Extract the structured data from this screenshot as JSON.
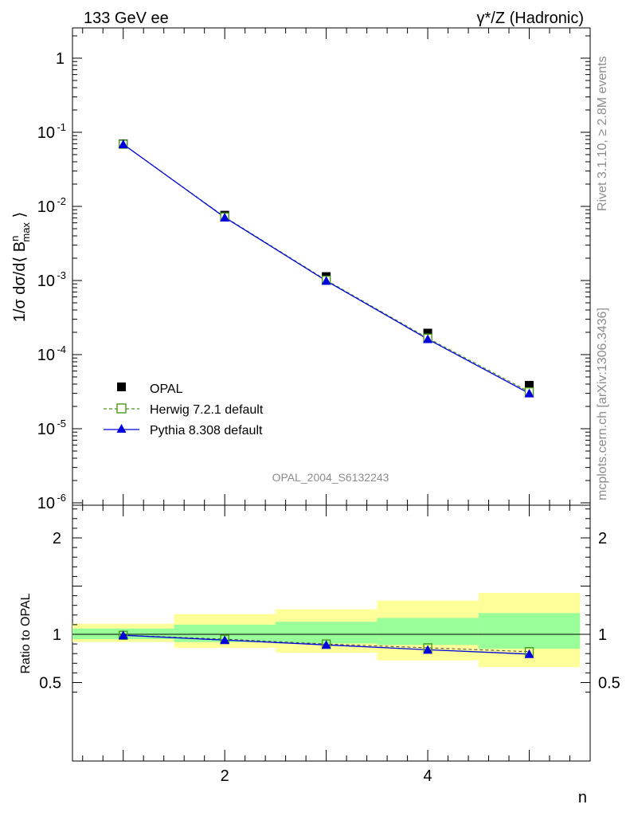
{
  "header": {
    "left": "133 GeV ee",
    "right": "γ*/Z (Hadronic)"
  },
  "side_labels": {
    "rivet": "Rivet 3.1.10, ≥ 2.8M events",
    "mcplots": "mcplots.cern.ch [arXiv:1306.3436]"
  },
  "watermark": "OPAL_2004_S6132243",
  "colors": {
    "opal": "#000000",
    "herwig": "#4a9a1a",
    "pythia": "#0000dd",
    "band_inner": "#99ff99",
    "band_outer": "#ffff99"
  },
  "chart_data": [
    {
      "type": "line",
      "panel": "main",
      "scale": "log",
      "ylabel": "1/σ dσ/d⟨ B_max^n ⟩",
      "yticks": [
        "1",
        "10^-1",
        "10^-2",
        "10^-3",
        "10^-4",
        "10^-5",
        "10^-6"
      ],
      "ylim": [
        1e-06,
        2.5
      ],
      "xlim": [
        0.5,
        5.6
      ],
      "x": [
        1,
        2,
        3,
        4,
        5
      ],
      "series": [
        {
          "name": "OPAL",
          "marker": "square-filled",
          "values": [
            0.07,
            0.0076,
            0.00113,
            0.000195,
            3.85e-05
          ]
        },
        {
          "name": "Herwig 7.2.1 default",
          "marker": "square-open",
          "style": "dashed",
          "values": [
            0.069,
            0.0072,
            0.00101,
            0.000167,
            3.15e-05
          ]
        },
        {
          "name": "Pythia 8.308 default",
          "marker": "triangle",
          "style": "solid",
          "values": [
            0.069,
            0.0071,
            0.00099,
            0.000162,
            3e-05
          ]
        }
      ],
      "legend": "bottom-left"
    },
    {
      "type": "line",
      "panel": "ratio",
      "ylabel": "Ratio to OPAL",
      "xlabel": "n",
      "xticks": [
        "2",
        "4"
      ],
      "yticks": [
        "0.5",
        "1",
        "2"
      ],
      "ylim": [
        0.4,
        2.5
      ],
      "xlim": [
        0.5,
        5.6
      ],
      "bins": [
        [
          0.5,
          1.5
        ],
        [
          1.5,
          2.5
        ],
        [
          2.5,
          3.5
        ],
        [
          3.5,
          4.5
        ],
        [
          4.5,
          5.5
        ]
      ],
      "band_inner": [
        [
          0.95,
          1.06
        ],
        [
          0.92,
          1.1
        ],
        [
          0.905,
          1.13
        ],
        [
          0.89,
          1.17
        ],
        [
          0.85,
          1.22
        ]
      ],
      "band_outer": [
        [
          0.92,
          1.11
        ],
        [
          0.86,
          1.21
        ],
        [
          0.81,
          1.26
        ],
        [
          0.73,
          1.35
        ],
        [
          0.66,
          1.43
        ]
      ],
      "x": [
        1,
        2,
        3,
        4,
        5
      ],
      "series": [
        {
          "name": "Herwig 7.2.1 default",
          "values": [
            0.99,
            0.95,
            0.9,
            0.86,
            0.82
          ]
        },
        {
          "name": "Pythia 8.308 default",
          "values": [
            0.99,
            0.94,
            0.89,
            0.84,
            0.795
          ]
        }
      ]
    }
  ]
}
